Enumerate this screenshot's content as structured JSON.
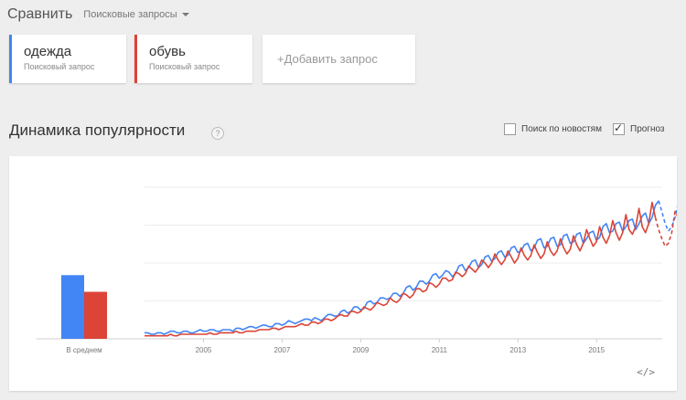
{
  "header": {
    "title": "Сравнить",
    "type_select": "Поисковые запросы"
  },
  "terms": [
    {
      "name": "одежда",
      "kind": "Поисковый запрос",
      "color": "#4285f4"
    },
    {
      "name": "обувь",
      "kind": "Поисковый запрос",
      "color": "#db4437"
    }
  ],
  "add_query": "+Добавить запрос",
  "section": {
    "title": "Динамика популярности",
    "help": "?"
  },
  "options": {
    "news": {
      "label": "Поиск по новостям",
      "checked": false
    },
    "forecast": {
      "label": "Прогноз",
      "checked": true
    }
  },
  "chart_data": {
    "type": "line",
    "ylim": [
      0,
      100
    ],
    "grid": true,
    "average": {
      "label": "В среднем",
      "values": [
        42,
        31
      ]
    },
    "x_range": [
      2004.0,
      2017.17
    ],
    "x_ticks": [
      "2005",
      "2007",
      "2009",
      "2011",
      "2013",
      "2015"
    ],
    "series": [
      {
        "color": "#4285f4",
        "start": 2004.0,
        "step": 0.0833,
        "values": [
          4,
          4,
          3,
          3,
          4,
          4,
          3,
          4,
          5,
          5,
          4,
          4,
          5,
          5,
          4,
          4,
          5,
          6,
          5,
          5,
          6,
          6,
          5,
          5,
          6,
          6,
          6,
          5,
          7,
          7,
          6,
          7,
          8,
          8,
          7,
          8,
          9,
          9,
          8,
          8,
          10,
          10,
          9,
          10,
          12,
          11,
          10,
          11,
          12,
          13,
          13,
          12,
          14,
          13,
          12,
          14,
          16,
          16,
          15,
          15,
          18,
          19,
          17,
          18,
          21,
          21,
          19,
          20,
          24,
          25,
          23,
          24,
          27,
          27,
          26,
          27,
          30,
          30,
          28,
          30,
          34,
          35,
          32,
          34,
          38,
          38,
          36,
          38,
          42,
          43,
          40,
          42,
          45,
          44,
          41,
          43,
          48,
          49,
          45,
          47,
          51,
          52,
          47,
          49,
          54,
          55,
          51,
          53,
          57,
          58,
          54,
          55,
          60,
          61,
          57,
          58,
          62,
          63,
          58,
          60,
          65,
          66,
          60,
          61,
          66,
          67,
          61,
          62,
          68,
          69,
          63,
          64,
          69,
          70,
          63,
          66,
          70,
          71,
          65,
          67,
          74,
          76,
          70,
          71,
          76,
          77,
          71,
          74,
          78,
          79,
          72,
          76,
          81,
          83,
          76,
          80,
          88,
          91
        ],
        "forecast": [
          91,
          84,
          76,
          71,
          74,
          80,
          90,
          94,
          95
        ]
      },
      {
        "color": "#db4437",
        "start": 2004.0,
        "step": 0.0833,
        "values": [
          2,
          2,
          2,
          2,
          2,
          2,
          2,
          2,
          3,
          2,
          2,
          3,
          3,
          3,
          3,
          3,
          3,
          3,
          3,
          3,
          4,
          3,
          3,
          4,
          4,
          4,
          4,
          4,
          5,
          4,
          4,
          5,
          5,
          5,
          5,
          6,
          6,
          6,
          6,
          7,
          7,
          6,
          7,
          8,
          8,
          8,
          8,
          9,
          10,
          9,
          9,
          11,
          11,
          10,
          11,
          13,
          13,
          12,
          13,
          15,
          16,
          15,
          15,
          18,
          18,
          17,
          18,
          21,
          20,
          19,
          21,
          24,
          23,
          22,
          23,
          27,
          25,
          24,
          26,
          30,
          29,
          27,
          29,
          33,
          33,
          31,
          32,
          37,
          36,
          34,
          36,
          40,
          40,
          38,
          39,
          44,
          43,
          41,
          43,
          48,
          46,
          44,
          47,
          52,
          50,
          47,
          50,
          56,
          52,
          49,
          52,
          58,
          54,
          50,
          53,
          60,
          55,
          52,
          55,
          62,
          57,
          53,
          56,
          64,
          58,
          55,
          58,
          66,
          60,
          56,
          59,
          68,
          62,
          58,
          63,
          72,
          66,
          61,
          64,
          74,
          67,
          63,
          68,
          78,
          70,
          65,
          70,
          82,
          72,
          69,
          74,
          86,
          74,
          70,
          76,
          90,
          80
        ],
        "forecast": [
          80,
          72,
          66,
          61,
          63,
          70,
          84,
          80,
          78
        ]
      }
    ]
  },
  "embed_label": "</>"
}
